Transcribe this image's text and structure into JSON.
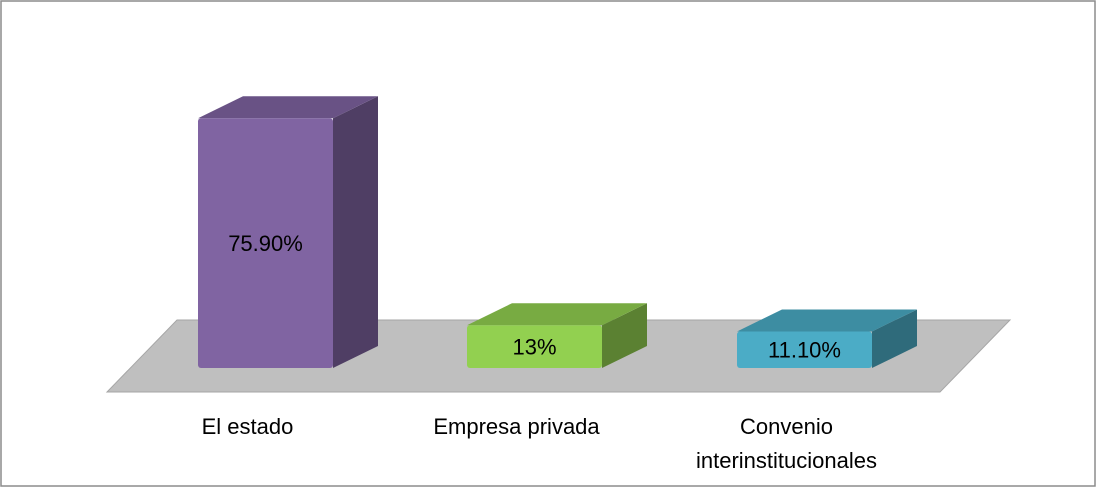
{
  "chart_data": {
    "type": "bar3d",
    "categories": [
      "El estado",
      "Empresa privada",
      "Convenio interinstitucionales"
    ],
    "values": [
      75.9,
      13,
      11.1
    ],
    "value_labels": [
      "75.90%",
      "13%",
      "11.10%"
    ],
    "colors": [
      "#8064a2",
      "#92d050",
      "#4bacc6"
    ]
  }
}
